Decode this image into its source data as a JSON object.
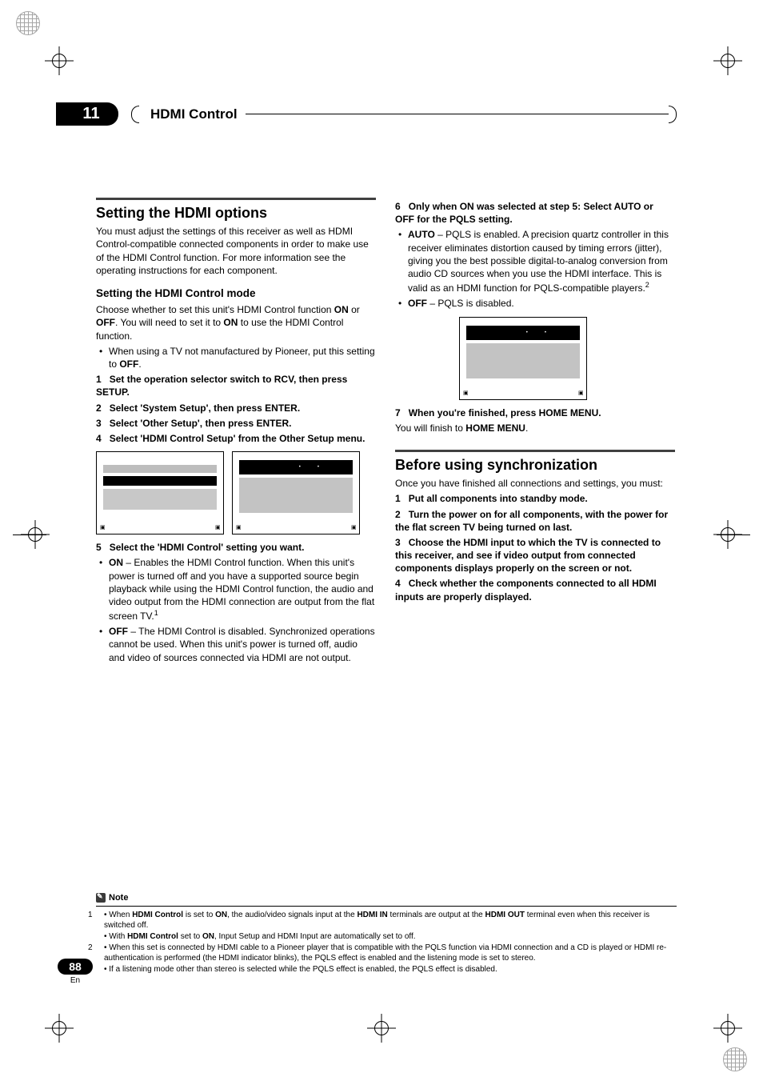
{
  "chapter": {
    "number": "11",
    "title": "HDMI Control"
  },
  "left": {
    "section_title": "Setting the HDMI options",
    "intro": "You must adjust the settings of this receiver as well as HDMI Control-compatible connected components in order to make use of the HDMI Control function. For more information see the operating instructions for each component.",
    "sub1_title": "Setting the HDMI Control mode",
    "sub1_para": "Choose whether to set this unit's HDMI Control function ",
    "sub1_para_b1": "ON",
    "sub1_para_mid": " or ",
    "sub1_para_b2": "OFF",
    "sub1_para_tail": ". You will need to set it to ",
    "sub1_para_b3": "ON",
    "sub1_para_end": " to use the HDMI Control function.",
    "bullet1_pre": "When using a TV not manufactured by Pioneer, put this setting to ",
    "bullet1_b": "OFF",
    "bullet1_post": ".",
    "steps": [
      {
        "n": "1",
        "t": "Set the operation selector switch to RCV, then press SETUP."
      },
      {
        "n": "2",
        "t": "Select 'System Setup', then press ENTER."
      },
      {
        "n": "3",
        "t": "Select 'Other Setup', then press ENTER."
      },
      {
        "n": "4",
        "t": "Select 'HDMI Control Setup' from the Other Setup menu."
      },
      {
        "n": "5",
        "t": "Select the 'HDMI Control' setting you want."
      }
    ],
    "opt_on_b": "ON",
    "opt_on": " – Enables the HDMI Control function. When this unit's power is turned off and you have a supported source begin playback while using the HDMI Control function, the audio and video output from the HDMI connection are output from the flat screen TV.",
    "opt_on_sup": "1",
    "opt_off_b": "OFF",
    "opt_off": " – The HDMI Control is disabled. Synchronized operations cannot be used. When this unit's power is turned off, audio and video of sources connected via HDMI are not output."
  },
  "right": {
    "step6_n": "6",
    "step6_t": "Only when ON was selected at step 5: Select AUTO or OFF for the PQLS setting.",
    "auto_b": "AUTO",
    "auto": " – PQLS is enabled. A precision quartz controller in this receiver eliminates distortion caused by timing errors (jitter), giving you the best possible digital-to-analog conversion from audio CD sources when you use the HDMI interface. This is valid as an HDMI function for PQLS-compatible players.",
    "auto_sup": "2",
    "off_b": "OFF",
    "off": " – PQLS is disabled.",
    "step7_n": "7",
    "step7_t": "When you're finished, press HOME MENU.",
    "step7_body_pre": "You will finish to ",
    "step7_body_b": "HOME MENU",
    "step7_body_post": ".",
    "sync_title": "Before using synchronization",
    "sync_intro": "Once you have finished all connections and settings, you must:",
    "sync_steps": [
      {
        "n": "1",
        "t": "Put all components into standby mode."
      },
      {
        "n": "2",
        "t": "Turn the power on for all components, with the power for the flat screen TV being turned on last."
      },
      {
        "n": "3",
        "t": "Choose the HDMI input to which the TV is connected to this receiver, and see if video output from connected components displays properly on the screen or not."
      },
      {
        "n": "4",
        "t": "Check whether the components connected to all HDMI inputs are properly displayed."
      }
    ]
  },
  "footnotes": {
    "label": "Note",
    "items": [
      "• When HDMI Control is set to ON, the audio/video signals input at the HDMI IN terminals are output at the HDMI OUT terminal even when this receiver is switched off.",
      "• With HDMI Control set to ON, Input Setup and HDMI Input are automatically set to off.",
      "• When this set is connected by HDMI cable to a Pioneer player that is compatible with the PQLS function via HDMI connection and a CD is played or HDMI re-authentication is performed (the HDMI indicator blinks), the PQLS effect is enabled and the listening mode is set to stereo.",
      "• If a listening mode other than stereo is selected while the PQLS effect is enabled, the PQLS effect is disabled."
    ],
    "nums": [
      "1",
      "",
      "2",
      ""
    ],
    "bold_map": {
      "0": [
        [
          "HDMI Control",
          "b"
        ],
        [
          "ON",
          "b"
        ],
        [
          "HDMI IN",
          "b"
        ],
        [
          "HDMI OUT",
          "b"
        ]
      ],
      "1": [
        [
          "HDMI Control",
          "b"
        ],
        [
          "ON",
          "b"
        ]
      ]
    }
  },
  "page_number": "88",
  "page_lang": "En",
  "colors": {
    "black": "#000000",
    "white": "#ffffff",
    "rule_heavy": "#404040",
    "osd_grey": "#c3c3c3",
    "osd_grey2": "#bdbdbd"
  }
}
